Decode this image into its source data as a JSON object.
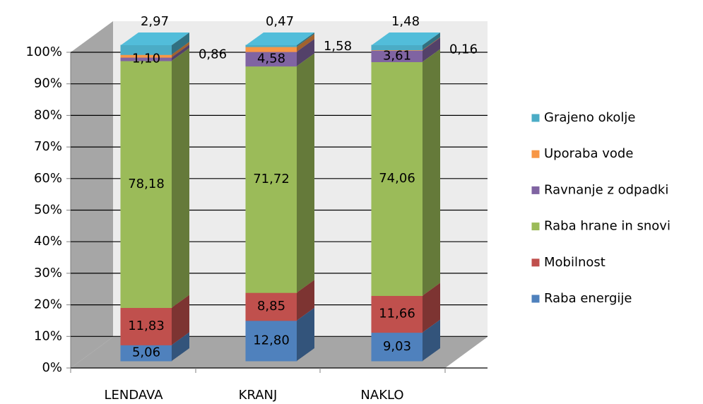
{
  "chart_data": {
    "type": "bar3d_stacked",
    "categories": [
      "LENDAVA",
      "KRANJ",
      "NAKLO"
    ],
    "series": [
      {
        "name": "Raba energije",
        "color": "#4f81bd",
        "values": [
          5.06,
          12.8,
          9.03
        ],
        "value_labels": [
          "5,06",
          "12,80",
          "9,03"
        ]
      },
      {
        "name": "Mobilnost",
        "color": "#c0504d",
        "values": [
          11.83,
          8.85,
          11.66
        ],
        "value_labels": [
          "11,83",
          "8,85",
          "11,66"
        ]
      },
      {
        "name": "Raba hrane in snovi",
        "color": "#9bbb59",
        "values": [
          78.18,
          71.72,
          74.06
        ],
        "value_labels": [
          "78,18",
          "71,72",
          "74,06"
        ]
      },
      {
        "name": "Ravnanje z odpadki",
        "color": "#8064a2",
        "values": [
          1.1,
          4.58,
          3.61
        ],
        "value_labels": [
          "1,10",
          "4,58",
          "3,61"
        ]
      },
      {
        "name": "Uporaba vode",
        "color": "#f79646",
        "values": [
          0.86,
          1.58,
          0.16
        ],
        "value_labels": [
          "0,86",
          "1,58",
          "0,16"
        ]
      },
      {
        "name": "Grajeno okolje",
        "color": "#4bacc6",
        "values": [
          2.97,
          0.47,
          1.48
        ],
        "value_labels": [
          "2,97",
          "0,47",
          "1,48"
        ]
      }
    ],
    "ylim": [
      0,
      100
    ],
    "yticks": [
      {
        "value": 0,
        "label": "0%"
      },
      {
        "value": 10,
        "label": "10%"
      },
      {
        "value": 20,
        "label": "20%"
      },
      {
        "value": 30,
        "label": "30%"
      },
      {
        "value": 40,
        "label": "40%"
      },
      {
        "value": 50,
        "label": "50%"
      },
      {
        "value": 60,
        "label": "60%"
      },
      {
        "value": 70,
        "label": "70%"
      },
      {
        "value": 80,
        "label": "80%"
      },
      {
        "value": 90,
        "label": "90%"
      },
      {
        "value": 100,
        "label": "100%"
      }
    ],
    "grid": true,
    "legend": "right"
  }
}
